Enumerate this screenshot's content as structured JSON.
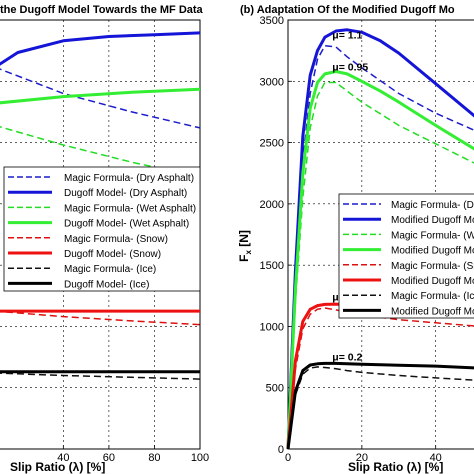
{
  "chart_data": [
    {
      "type": "line",
      "title": "the Dugoff Model Towards the MF Data",
      "xlabel": "Slip Ratio (λ)  [%]",
      "ylabel": "",
      "xlim": [
        10,
        100
      ],
      "ylim": [
        0,
        3500
      ],
      "xticks": [
        40,
        60,
        80,
        100
      ],
      "grid": true,
      "legend_position": "middle",
      "legend": [
        "Magic Formula- (Dry Asphalt)",
        "Dugoff Model- (Dry Asphalt)",
        "Magic Formula- (Wet Asphalt)",
        "Dugoff Model- (Wet Asphalt)",
        "Magic Formula- (Snow)",
        "Dugoff Model- (Snow)",
        "Magic Formula- (Ice)",
        "Dugoff Model- (Ice)"
      ],
      "series": [
        {
          "name": "Magic Formula- (Dry Asphalt)",
          "color": "#1c1ccc",
          "dashed": true,
          "width": 1.5,
          "x": [
            10,
            40,
            70,
            100
          ],
          "y": [
            3115,
            2900,
            2750,
            2620
          ]
        },
        {
          "name": "Dugoff Model- (Dry Asphalt)",
          "color": "#1515d8",
          "dashed": false,
          "width": 3,
          "x": [
            10,
            20,
            40,
            60,
            80,
            100
          ],
          "y": [
            3115,
            3235,
            3330,
            3365,
            3380,
            3395
          ]
        },
        {
          "name": "Magic Formula- (Wet Asphalt)",
          "color": "#22dd22",
          "dashed": true,
          "width": 1.5,
          "x": [
            10,
            40,
            70,
            100
          ],
          "y": [
            2640,
            2480,
            2340,
            2220
          ]
        },
        {
          "name": "Dugoff Model- (Wet Asphalt)",
          "color": "#33ee33",
          "dashed": false,
          "width": 3,
          "x": [
            10,
            40,
            70,
            100
          ],
          "y": [
            2820,
            2875,
            2910,
            2935
          ]
        },
        {
          "name": "Magic Formula- (Snow)",
          "color": "#dd1111",
          "dashed": true,
          "width": 1.5,
          "x": [
            10,
            40,
            70,
            100
          ],
          "y": [
            1125,
            1080,
            1045,
            1015
          ]
        },
        {
          "name": "Dugoff Model- (Snow)",
          "color": "#ee1111",
          "dashed": false,
          "width": 3,
          "x": [
            10,
            100
          ],
          "y": [
            1125,
            1125
          ]
        },
        {
          "name": "Magic Formula- (Ice)",
          "color": "#111111",
          "dashed": true,
          "width": 1.5,
          "x": [
            10,
            40,
            70,
            100
          ],
          "y": [
            620,
            600,
            585,
            570
          ]
        },
        {
          "name": "Dugoff Model- (Ice)",
          "color": "#000000",
          "dashed": false,
          "width": 3,
          "x": [
            10,
            100
          ],
          "y": [
            630,
            630
          ]
        }
      ]
    },
    {
      "type": "line",
      "title": "(b) Adaptation Of the Modified Dugoff Mo",
      "xlabel": "Slip Ratio (λ)  [%]",
      "ylabel": "F",
      "ylabel_subscript": "x",
      "ylabel_unit": " [N]",
      "xlim": [
        0,
        52
      ],
      "ylim": [
        0,
        3500
      ],
      "xticks": [
        0,
        20,
        40
      ],
      "yticks": [
        0,
        500,
        1000,
        1500,
        2000,
        2500,
        3000,
        3500
      ],
      "grid": true,
      "legend_position": "middle-right",
      "legend": [
        "Magic Formula- (Dry",
        "Modified Dugoff Mo",
        "Magic Formula- (We",
        "Modified Dugoff Mo",
        "Magic Formula- (Sno",
        "Modified Dugoff Mo",
        "Magic Formula- (Ice",
        "Modified Dugoff Mo"
      ],
      "annotations": [
        {
          "text": "μ= 1.1",
          "x": 12,
          "y": 3350
        },
        {
          "text": "μ= 0.95",
          "x": 12,
          "y": 3090
        },
        {
          "text": "μ= 0.35",
          "x": 12,
          "y": 1210
        },
        {
          "text": "μ= 0.2",
          "x": 12,
          "y": 720
        }
      ],
      "series": [
        {
          "name": "Magic Formula- (Dry",
          "color": "#1c1ccc",
          "dashed": true,
          "width": 1.5,
          "x": [
            0,
            2,
            4,
            6,
            8,
            10,
            13,
            16,
            20,
            30,
            40,
            52
          ],
          "y": [
            0,
            1350,
            2350,
            2900,
            3180,
            3290,
            3280,
            3200,
            3110,
            2900,
            2740,
            2580
          ]
        },
        {
          "name": "Modified Dugoff Mo",
          "color": "#1515d8",
          "dashed": false,
          "width": 3,
          "x": [
            0,
            2,
            4,
            6,
            8,
            10,
            13,
            16,
            20,
            25,
            30,
            40,
            52
          ],
          "y": [
            0,
            1450,
            2550,
            3050,
            3250,
            3360,
            3410,
            3420,
            3400,
            3330,
            3230,
            2980,
            2680
          ]
        },
        {
          "name": "Magic Formula- (We",
          "color": "#22dd22",
          "dashed": true,
          "width": 1.5,
          "x": [
            0,
            2,
            4,
            6,
            8,
            10,
            13,
            16,
            20,
            30,
            40,
            52
          ],
          "y": [
            0,
            1200,
            2050,
            2620,
            2880,
            2990,
            2990,
            2920,
            2830,
            2640,
            2490,
            2310
          ]
        },
        {
          "name": "Modified Dugoff Mo",
          "color": "#33ee33",
          "dashed": false,
          "width": 3,
          "x": [
            0,
            2,
            4,
            6,
            8,
            10,
            13,
            16,
            20,
            25,
            30,
            40,
            52
          ],
          "y": [
            0,
            1300,
            2250,
            2780,
            2990,
            3060,
            3080,
            3060,
            3000,
            2920,
            2830,
            2640,
            2420
          ]
        },
        {
          "name": "Magic Formula- (Sno",
          "color": "#dd1111",
          "dashed": true,
          "width": 1.5,
          "x": [
            0,
            2,
            4,
            6,
            8,
            10,
            13,
            16,
            20,
            30,
            40,
            52
          ],
          "y": [
            0,
            650,
            980,
            1100,
            1140,
            1150,
            1135,
            1115,
            1095,
            1055,
            1030,
            1000
          ]
        },
        {
          "name": "Modified Dugoff Mo",
          "color": "#ee1111",
          "dashed": false,
          "width": 3,
          "x": [
            0,
            2,
            4,
            6,
            8,
            10,
            13,
            16,
            20,
            25,
            30,
            40,
            52
          ],
          "y": [
            0,
            720,
            1040,
            1140,
            1170,
            1180,
            1182,
            1178,
            1170,
            1160,
            1150,
            1125,
            1090
          ]
        },
        {
          "name": "Magic Formula- (Ice",
          "color": "#111111",
          "dashed": true,
          "width": 1.5,
          "x": [
            0,
            2,
            4,
            6,
            8,
            10,
            13,
            16,
            20,
            30,
            40,
            52
          ],
          "y": [
            0,
            440,
            610,
            660,
            670,
            665,
            655,
            640,
            625,
            600,
            580,
            560
          ]
        },
        {
          "name": "Modified Dugoff Mo",
          "color": "#000000",
          "dashed": false,
          "width": 3,
          "x": [
            0,
            2,
            4,
            6,
            8,
            10,
            13,
            16,
            20,
            25,
            30,
            40,
            52
          ],
          "y": [
            0,
            470,
            640,
            685,
            695,
            698,
            698,
            696,
            692,
            688,
            684,
            676,
            660
          ]
        }
      ]
    }
  ]
}
